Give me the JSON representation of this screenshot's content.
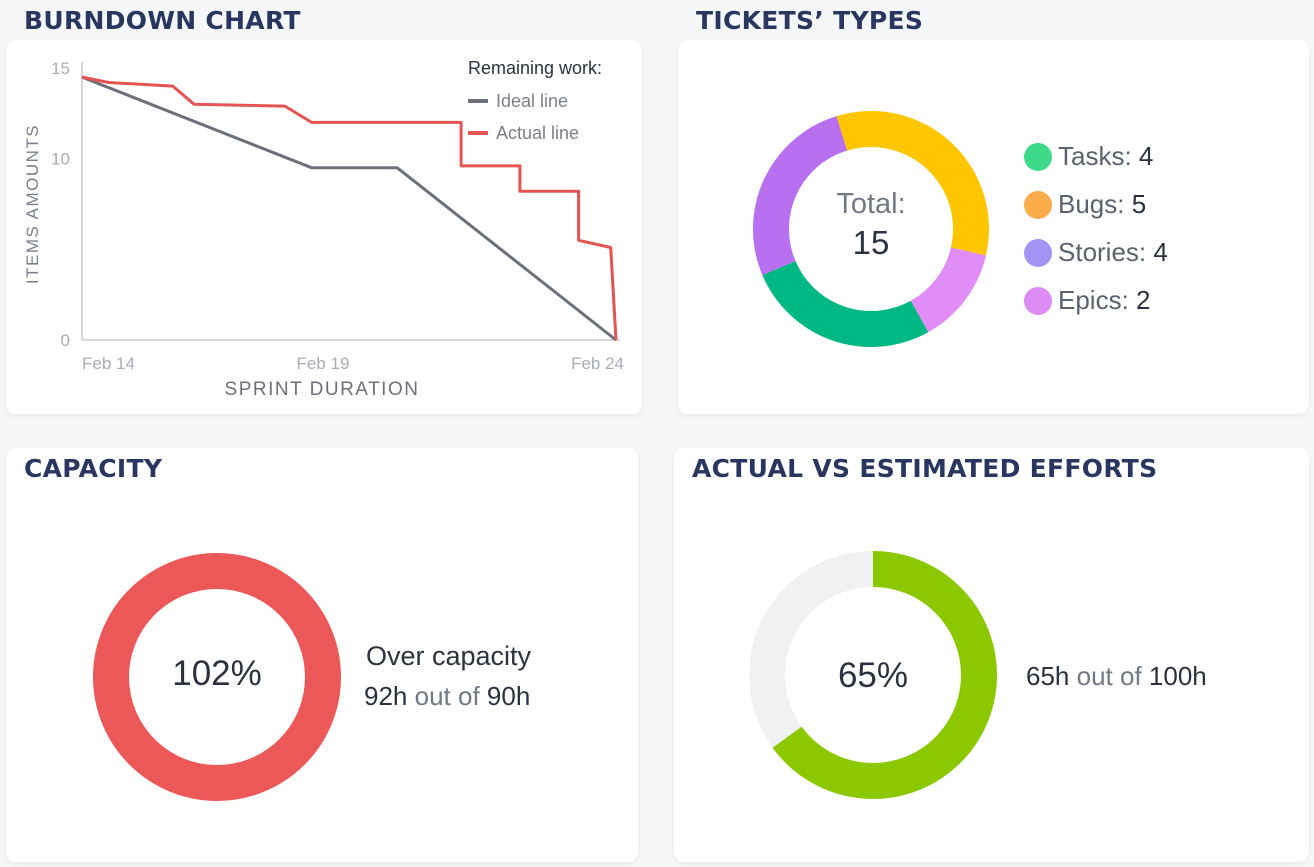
{
  "burndown": {
    "title": "BURNDOWN CHART",
    "legend_title": "Remaining work:",
    "chart_data": {
      "type": "line",
      "xlabel": "SPRINT DURATION",
      "ylabel": "ITEMS AMOUNTS",
      "ylim": [
        0,
        15
      ],
      "xlim": [
        0,
        10
      ],
      "yticks": [
        {
          "value": 15,
          "label": "15"
        },
        {
          "value": 10,
          "label": "10"
        },
        {
          "value": 0,
          "label": "0"
        }
      ],
      "xticks": [
        {
          "value": 0,
          "label": "Feb 14"
        },
        {
          "value": 5,
          "label": "Feb 19"
        },
        {
          "value": 10,
          "label": "Feb 24"
        }
      ],
      "series": [
        {
          "name": "Ideal line",
          "color": "#6b707a",
          "points": [
            [
              0,
              14.5
            ],
            [
              4.3,
              9.5
            ],
            [
              5.9,
              9.5
            ],
            [
              10,
              0
            ]
          ]
        },
        {
          "name": "Actual line",
          "color": "#e55353",
          "points": [
            [
              0,
              14.5
            ],
            [
              0.5,
              14.2
            ],
            [
              1.7,
              14.0
            ],
            [
              2.1,
              13.0
            ],
            [
              3.8,
              12.9
            ],
            [
              4.3,
              12.0
            ],
            [
              7.1,
              12.0
            ],
            [
              7.1,
              9.6
            ],
            [
              8.2,
              9.6
            ],
            [
              8.2,
              8.2
            ],
            [
              9.3,
              8.2
            ],
            [
              9.3,
              5.5
            ],
            [
              9.9,
              5.1
            ],
            [
              10,
              0
            ]
          ]
        }
      ]
    }
  },
  "tickets": {
    "title": "TICKETS’ TYPES",
    "total_label": "Total:",
    "total_value": "15",
    "chart_data": {
      "type": "pie",
      "total": 15,
      "slices": [
        {
          "name": "Tasks",
          "value": 4,
          "legend_color": "#3fd98a",
          "ring_color": "#00b884"
        },
        {
          "name": "Bugs",
          "value": 5,
          "legend_color": "#fbad4c",
          "ring_color": "#ffc600"
        },
        {
          "name": "Stories",
          "value": 4,
          "legend_color": "#a393f5",
          "ring_color": "#b86ff0"
        },
        {
          "name": "Epics",
          "value": 2,
          "legend_color": "#dc8bf7",
          "ring_color": "#e08cf9"
        }
      ]
    },
    "legend": [
      {
        "label": "Tasks:",
        "value": "4",
        "color": "#3fd98a"
      },
      {
        "label": "Bugs:",
        "value": "5",
        "color": "#fbad4c"
      },
      {
        "label": "Stories:",
        "value": "4",
        "color": "#a393f5"
      },
      {
        "label": "Epics:",
        "value": "2",
        "color": "#dc8bf7"
      }
    ]
  },
  "capacity": {
    "title": "CAPACITY",
    "percent_label": "102%",
    "fraction": 1.0,
    "ring_color": "#ec5858",
    "status": "Over capacity",
    "used": "92h",
    "out_of": "out of",
    "total": "90h"
  },
  "efforts": {
    "title": "ACTUAL VS ESTIMATED EFFORTS",
    "percent_label": "65%",
    "fraction": 0.65,
    "ring_color": "#8cc800",
    "track_color": "#f0f1f3",
    "actual": "65h",
    "out_of": "out of",
    "estimated": "100h"
  }
}
